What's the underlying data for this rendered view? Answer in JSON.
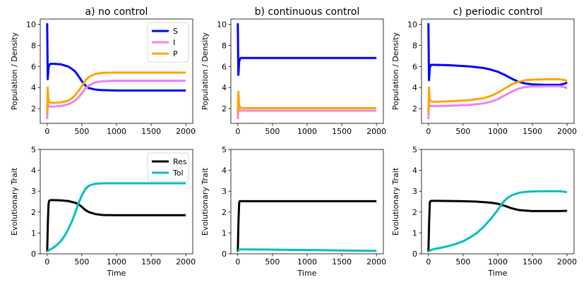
{
  "chart_data": [
    {
      "panel": "top-left",
      "type": "line",
      "title": "a) no control",
      "xlabel": "",
      "ylabel": "Population / Density",
      "xlim": [
        -100,
        2100
      ],
      "ylim": [
        0.6,
        10.5
      ],
      "xticks": [
        0,
        500,
        1000,
        1500,
        2000
      ],
      "yticks": [
        2,
        4,
        6,
        8,
        10
      ],
      "legend": "top-right",
      "series": [
        {
          "name": "S",
          "color": "#0000ff",
          "x": [
            0,
            8,
            20,
            35,
            50,
            100,
            200,
            300,
            350,
            400,
            450,
            500,
            550,
            600,
            700,
            800,
            1000,
            1500,
            2000
          ],
          "y": [
            10.1,
            4.8,
            5.9,
            6.2,
            6.25,
            6.25,
            6.2,
            6.0,
            5.8,
            5.55,
            5.1,
            4.6,
            4.2,
            3.95,
            3.8,
            3.75,
            3.72,
            3.72,
            3.72
          ]
        },
        {
          "name": "I",
          "color": "#ee82ee",
          "x": [
            0,
            8,
            15,
            30,
            60,
            100,
            200,
            300,
            350,
            400,
            450,
            500,
            550,
            600,
            700,
            800,
            1000,
            1500,
            2000
          ],
          "y": [
            1.0,
            2.5,
            2.25,
            2.2,
            2.2,
            2.2,
            2.25,
            2.4,
            2.55,
            2.75,
            3.05,
            3.45,
            3.9,
            4.2,
            4.5,
            4.6,
            4.65,
            4.65,
            4.65
          ]
        },
        {
          "name": "P",
          "color": "#ffa500",
          "x": [
            0,
            8,
            15,
            30,
            60,
            100,
            200,
            300,
            350,
            400,
            450,
            500,
            550,
            600,
            700,
            800,
            1000,
            1500,
            2000
          ],
          "y": [
            1.5,
            4.0,
            3.0,
            2.6,
            2.55,
            2.55,
            2.6,
            2.75,
            2.95,
            3.25,
            3.65,
            4.15,
            4.65,
            5.0,
            5.3,
            5.4,
            5.42,
            5.42,
            5.42
          ]
        }
      ]
    },
    {
      "panel": "top-middle",
      "type": "line",
      "title": "b) continuous control",
      "xlabel": "",
      "ylabel": "Population / Density",
      "xlim": [
        -100,
        2100
      ],
      "ylim": [
        0.6,
        10.5
      ],
      "xticks": [
        0,
        500,
        1000,
        1500,
        2000
      ],
      "yticks": [
        2,
        4,
        6,
        8,
        10
      ],
      "series": [
        {
          "name": "S",
          "color": "#0000ff",
          "x": [
            0,
            8,
            20,
            40,
            80,
            200,
            2000
          ],
          "y": [
            10.1,
            5.2,
            6.5,
            6.8,
            6.8,
            6.8,
            6.8
          ]
        },
        {
          "name": "I",
          "color": "#ee82ee",
          "x": [
            0,
            8,
            20,
            40,
            80,
            2000
          ],
          "y": [
            1.0,
            2.2,
            1.85,
            1.8,
            1.8,
            1.8
          ]
        },
        {
          "name": "P",
          "color": "#ffa500",
          "x": [
            0,
            8,
            20,
            40,
            80,
            2000
          ],
          "y": [
            1.5,
            3.6,
            2.3,
            2.05,
            2.05,
            2.05
          ]
        }
      ]
    },
    {
      "panel": "top-right",
      "type": "line",
      "title": "c) periodic control",
      "xlabel": "",
      "ylabel": "Population / Density",
      "xlim": [
        -100,
        2100
      ],
      "ylim": [
        0.6,
        10.5
      ],
      "xticks": [
        0,
        500,
        1000,
        1500,
        2000
      ],
      "yticks": [
        2,
        4,
        6,
        8,
        10
      ],
      "series": [
        {
          "name": "S",
          "color": "#0000ff",
          "x": [
            0,
            8,
            20,
            35,
            50,
            100,
            300,
            600,
            800,
            900,
            1000,
            1100,
            1200,
            1300,
            1400,
            1500,
            1700,
            1900,
            1980,
            2000
          ],
          "y": [
            10.1,
            4.7,
            5.9,
            6.15,
            6.15,
            6.15,
            6.12,
            6.0,
            5.85,
            5.7,
            5.5,
            5.2,
            4.85,
            4.55,
            4.38,
            4.3,
            4.25,
            4.25,
            4.4,
            4.5
          ]
        },
        {
          "name": "I",
          "color": "#ee82ee",
          "x": [
            0,
            8,
            15,
            30,
            60,
            100,
            300,
            600,
            800,
            900,
            1000,
            1100,
            1200,
            1300,
            1400,
            1500,
            1700,
            1900,
            1980,
            2000
          ],
          "y": [
            1.0,
            2.5,
            2.3,
            2.25,
            2.25,
            2.25,
            2.27,
            2.35,
            2.5,
            2.65,
            2.9,
            3.25,
            3.6,
            3.9,
            4.05,
            4.1,
            4.12,
            4.12,
            4.0,
            3.9
          ]
        },
        {
          "name": "P",
          "color": "#ffa500",
          "x": [
            0,
            8,
            15,
            30,
            60,
            100,
            300,
            600,
            800,
            900,
            1000,
            1100,
            1200,
            1300,
            1400,
            1500,
            1700,
            1900,
            1980,
            2000
          ],
          "y": [
            1.5,
            4.0,
            3.0,
            2.7,
            2.65,
            2.65,
            2.7,
            2.8,
            3.0,
            3.2,
            3.5,
            3.9,
            4.3,
            4.55,
            4.7,
            4.75,
            4.78,
            4.78,
            4.7,
            4.6
          ]
        }
      ]
    },
    {
      "panel": "bottom-left",
      "type": "line",
      "title": "",
      "xlabel": "Time",
      "ylabel": "Evolutionary Trait",
      "xlim": [
        -100,
        2100
      ],
      "ylim": [
        0,
        5
      ],
      "xticks": [
        0,
        500,
        1000,
        1500,
        2000
      ],
      "yticks": [
        0,
        1,
        2,
        3,
        4,
        5
      ],
      "legend": "top-right",
      "series": [
        {
          "name": "Res",
          "color": "#000000",
          "x": [
            0,
            10,
            20,
            30,
            50,
            100,
            200,
            300,
            400,
            450,
            500,
            550,
            600,
            700,
            800,
            1000,
            1500,
            2000
          ],
          "y": [
            0.1,
            1.5,
            2.4,
            2.55,
            2.57,
            2.57,
            2.56,
            2.53,
            2.45,
            2.38,
            2.25,
            2.1,
            2.0,
            1.9,
            1.86,
            1.85,
            1.85,
            1.85
          ]
        },
        {
          "name": "Tol",
          "color": "#00bfbf",
          "x": [
            0,
            50,
            100,
            150,
            200,
            250,
            300,
            350,
            400,
            450,
            500,
            550,
            600,
            650,
            700,
            800,
            1000,
            1500,
            2000
          ],
          "y": [
            0.12,
            0.22,
            0.32,
            0.45,
            0.62,
            0.85,
            1.15,
            1.5,
            1.92,
            2.4,
            2.8,
            3.1,
            3.26,
            3.32,
            3.36,
            3.38,
            3.38,
            3.38,
            3.38
          ]
        }
      ]
    },
    {
      "panel": "bottom-middle",
      "type": "line",
      "title": "",
      "xlabel": "Time",
      "ylabel": "Evolutionary Trait",
      "xlim": [
        -100,
        2100
      ],
      "ylim": [
        0,
        5
      ],
      "xticks": [
        0,
        500,
        1000,
        1500,
        2000
      ],
      "yticks": [
        0,
        1,
        2,
        3,
        4,
        5
      ],
      "series": [
        {
          "name": "Res",
          "color": "#000000",
          "x": [
            0,
            10,
            20,
            30,
            50,
            100,
            500,
            1000,
            1500,
            2000
          ],
          "y": [
            0.1,
            1.6,
            2.45,
            2.53,
            2.52,
            2.52,
            2.52,
            2.52,
            2.52,
            2.52
          ]
        },
        {
          "name": "Tol",
          "color": "#00bfbf",
          "x": [
            0,
            20,
            50,
            100,
            500,
            1000,
            1500,
            2000
          ],
          "y": [
            0.12,
            0.2,
            0.21,
            0.21,
            0.2,
            0.18,
            0.16,
            0.14
          ]
        }
      ]
    },
    {
      "panel": "bottom-right",
      "type": "line",
      "title": "",
      "xlabel": "Time",
      "ylabel": "Evolutionary Trait",
      "xlim": [
        -100,
        2100
      ],
      "ylim": [
        0,
        5
      ],
      "xticks": [
        0,
        500,
        1000,
        1500,
        2000
      ],
      "yticks": [
        0,
        1,
        2,
        3,
        4,
        5
      ],
      "series": [
        {
          "name": "Res",
          "color": "#000000",
          "x": [
            0,
            10,
            20,
            30,
            50,
            100,
            300,
            500,
            700,
            900,
            1000,
            1100,
            1200,
            1300,
            1400,
            1500,
            1700,
            1900,
            2000
          ],
          "y": [
            0.1,
            1.5,
            2.45,
            2.53,
            2.54,
            2.54,
            2.53,
            2.52,
            2.5,
            2.45,
            2.4,
            2.3,
            2.18,
            2.1,
            2.07,
            2.05,
            2.05,
            2.05,
            2.06
          ]
        },
        {
          "name": "Tol",
          "color": "#00bfbf",
          "x": [
            0,
            50,
            100,
            200,
            300,
            400,
            500,
            600,
            700,
            800,
            900,
            1000,
            1050,
            1100,
            1150,
            1200,
            1300,
            1400,
            1500,
            1700,
            1900,
            2000
          ],
          "y": [
            0.12,
            0.2,
            0.24,
            0.3,
            0.38,
            0.48,
            0.6,
            0.78,
            1.0,
            1.3,
            1.68,
            2.1,
            2.35,
            2.55,
            2.7,
            2.8,
            2.92,
            2.97,
            2.99,
            3.0,
            3.0,
            2.95
          ]
        }
      ]
    }
  ]
}
